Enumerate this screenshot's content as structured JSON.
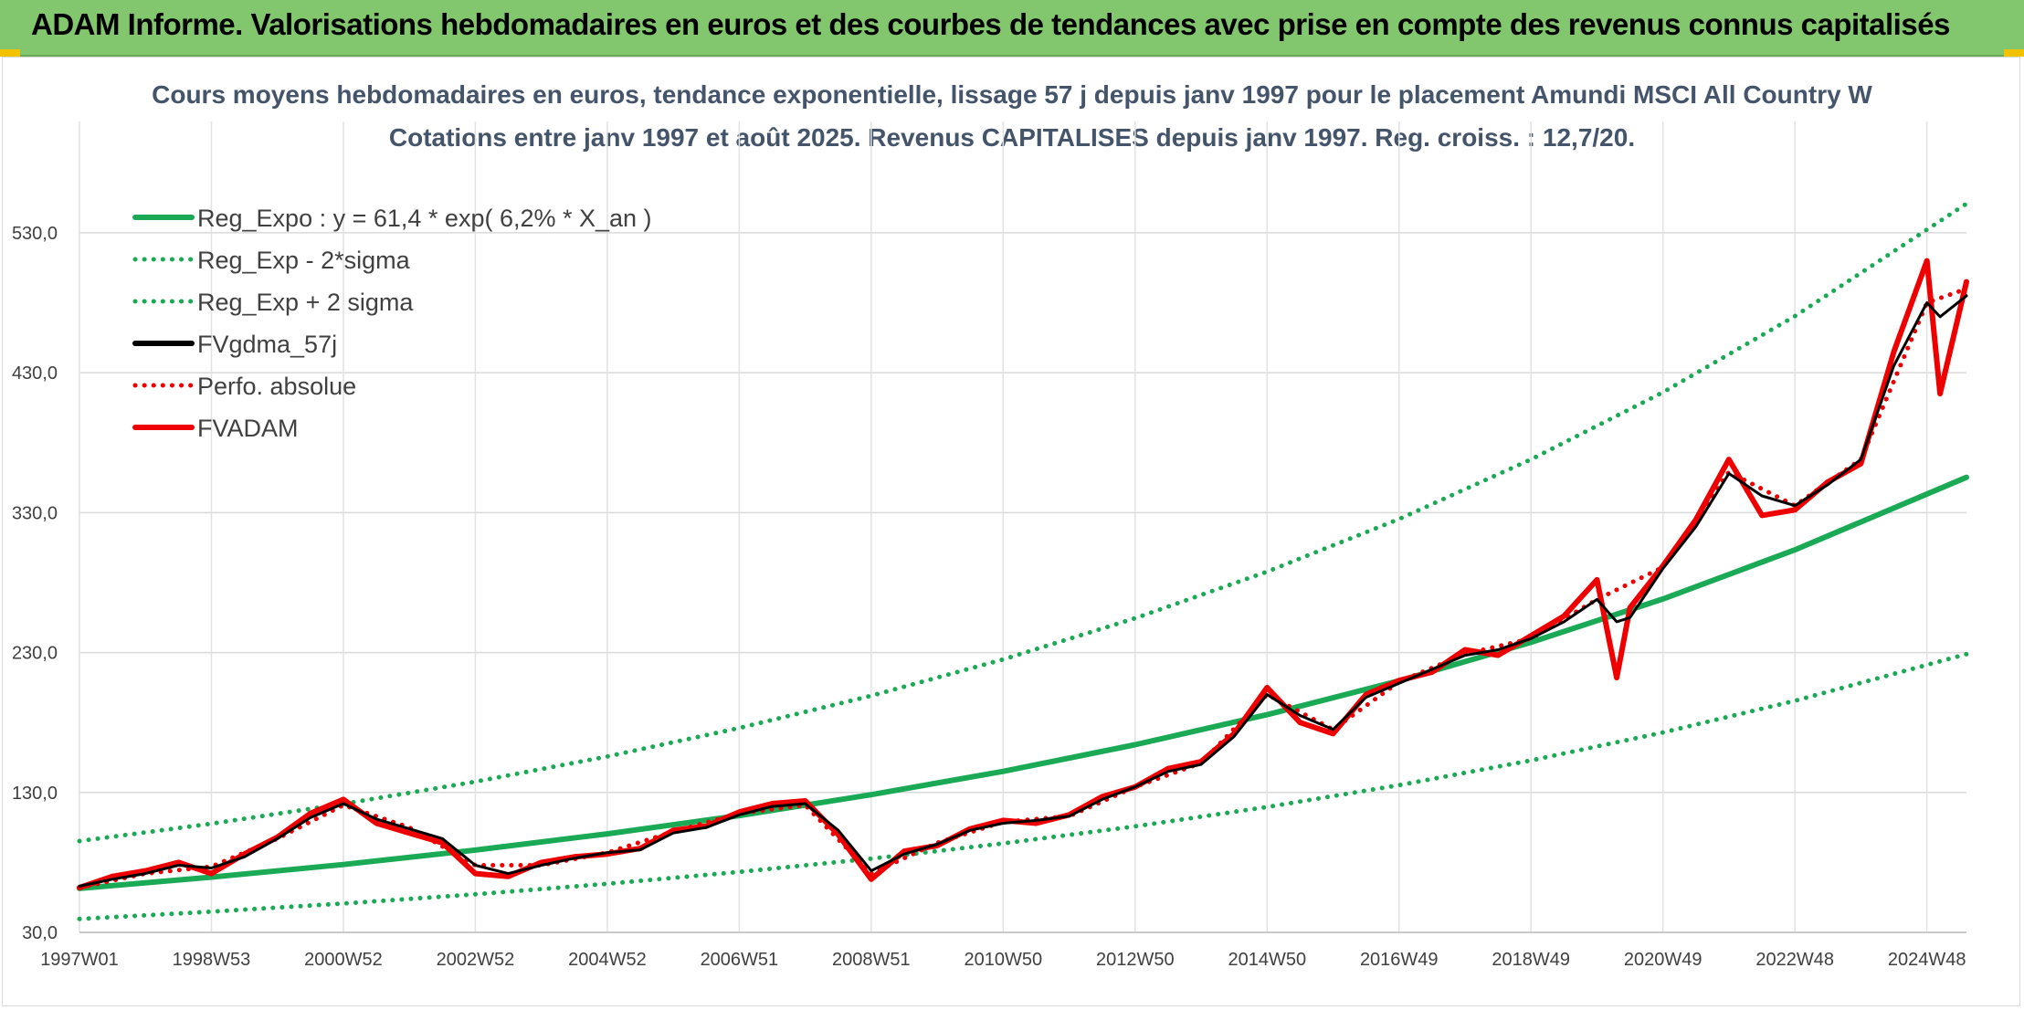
{
  "header": {
    "title": "ADAM Informe. Valorisations hebdomadaires en euros et des courbes de tendances avec prise en compte des revenus connus capitalisés"
  },
  "colors": {
    "banner": "#82c76e",
    "reg_expo": "#1aaa55",
    "fvgdma": "#000000",
    "fvadam": "#ee0000",
    "perfo": "#ee0000"
  },
  "chart_data": {
    "type": "line",
    "title": "Cours moyens hebdomadaires en euros, tendance exponentielle, lissage 57 j depuis janv 1997 pour le placement Amundi MSCI All Country W",
    "subtitle": "Cotations entre janv 1997 et août 2025. Revenus CAPITALISES depuis janv 1997. Reg. croiss. : 12,7/20.",
    "xlabel": "",
    "ylabel": "",
    "ylim": [
      30,
      590
    ],
    "xlim": [
      1997.0,
      2025.6
    ],
    "grid": true,
    "legend_position": "top-left",
    "y_ticks": [
      "30,0",
      "130,0",
      "230,0",
      "330,0",
      "430,0",
      "530,0"
    ],
    "y_tick_values": [
      30,
      130,
      230,
      330,
      430,
      530
    ],
    "x_ticks": [
      "1997W01",
      "1998W53",
      "2000W52",
      "2002W52",
      "2004W52",
      "2006W51",
      "2008W51",
      "2010W50",
      "2012W50",
      "2014W50",
      "2016W49",
      "2018W49",
      "2020W49",
      "2022W48",
      "2024W48"
    ],
    "x_tick_values": [
      1997.0,
      1999.0,
      2001.0,
      2003.0,
      2005.0,
      2007.0,
      2009.0,
      2011.0,
      2013.0,
      2015.0,
      2017.0,
      2019.0,
      2021.0,
      2023.0,
      2025.0
    ],
    "series": [
      {
        "name": "Reg_Expo : y = 61,4 * exp( 6,2% *  X_an )",
        "style": "solid-thick",
        "color": "#1aaa55",
        "x": [
          1997.0,
          1999.0,
          2001.0,
          2003.0,
          2005.0,
          2007.0,
          2009.0,
          2011.0,
          2013.0,
          2015.0,
          2017.0,
          2019.0,
          2021.0,
          2023.0,
          2025.6
        ],
        "values": [
          61.4,
          69.5,
          78.5,
          88.8,
          100.4,
          113.5,
          128.4,
          145.1,
          164.1,
          185.6,
          209.8,
          237.3,
          268.3,
          303.4,
          355.2
        ]
      },
      {
        "name": "Reg_Exp - 2*sigma",
        "style": "dotted",
        "color": "#1aaa55",
        "x": [
          1997.0,
          1999.0,
          2001.0,
          2003.0,
          2005.0,
          2007.0,
          2009.0,
          2011.0,
          2013.0,
          2015.0,
          2017.0,
          2019.0,
          2021.0,
          2023.0,
          2025.6
        ],
        "values": [
          39.6,
          44.8,
          50.6,
          57.2,
          64.7,
          73.2,
          82.7,
          93.6,
          105.8,
          119.6,
          135.2,
          152.9,
          172.9,
          195.5,
          228.9
        ]
      },
      {
        "name": "Reg_Exp + 2 sigma",
        "style": "dotted",
        "color": "#1aaa55",
        "x": [
          1997.0,
          1999.0,
          2001.0,
          2003.0,
          2005.0,
          2007.0,
          2009.0,
          2011.0,
          2013.0,
          2015.0,
          2017.0,
          2019.0,
          2021.0,
          2023.0,
          2025.6
        ],
        "values": [
          95.3,
          107.7,
          121.8,
          137.7,
          155.7,
          176.1,
          199.1,
          225.1,
          254.5,
          287.8,
          325.4,
          368.0,
          416.0,
          470.4,
          550.8
        ]
      },
      {
        "name": "FVgdma_57j",
        "style": "solid",
        "color": "#000000",
        "x": [
          1997.0,
          1997.5,
          1998.0,
          1998.5,
          1999.0,
          1999.5,
          2000.0,
          2000.5,
          2001.0,
          2001.5,
          2002.0,
          2002.5,
          2003.0,
          2003.5,
          2004.0,
          2004.5,
          2005.0,
          2005.5,
          2006.0,
          2006.5,
          2007.0,
          2007.5,
          2008.0,
          2008.5,
          2009.0,
          2009.5,
          2010.0,
          2010.5,
          2011.0,
          2011.5,
          2012.0,
          2012.5,
          2013.0,
          2013.5,
          2014.0,
          2014.5,
          2015.0,
          2015.5,
          2016.0,
          2016.5,
          2017.0,
          2017.5,
          2018.0,
          2018.5,
          2019.0,
          2019.5,
          2020.0,
          2020.3,
          2020.5,
          2021.0,
          2021.5,
          2022.0,
          2022.5,
          2023.0,
          2023.5,
          2024.0,
          2024.5,
          2025.0,
          2025.2,
          2025.6
        ],
        "values": [
          63,
          68,
          72,
          78,
          76,
          84,
          97,
          112,
          122,
          111,
          104,
          97,
          78,
          72,
          78,
          83,
          87,
          89,
          101,
          105,
          114,
          120,
          122,
          103,
          74,
          86,
          93,
          103,
          108,
          110,
          113,
          125,
          134,
          145,
          150,
          170,
          200,
          185,
          175,
          198,
          208,
          218,
          228,
          232,
          240,
          252,
          268,
          252,
          255,
          290,
          320,
          358,
          342,
          335,
          350,
          368,
          435,
          480,
          470,
          485
        ]
      },
      {
        "name": "Perfo. absolue",
        "style": "dotted",
        "color": "#ee0000",
        "x": [
          1997.0,
          1998.0,
          1999.0,
          2000.0,
          2001.0,
          2002.0,
          2003.0,
          2004.0,
          2005.0,
          2006.0,
          2007.0,
          2008.0,
          2009.0,
          2010.0,
          2011.0,
          2012.0,
          2013.0,
          2014.0,
          2015.0,
          2016.0,
          2017.0,
          2018.0,
          2019.0,
          2020.0,
          2021.0,
          2022.0,
          2023.0,
          2024.0,
          2025.0,
          2025.6
        ],
        "values": [
          62,
          72,
          77,
          97,
          121,
          105,
          78,
          78,
          87,
          102,
          115,
          121,
          72,
          94,
          109,
          113,
          134,
          151,
          200,
          175,
          209,
          229,
          240,
          268,
          291,
          359,
          335,
          368,
          480,
          490
        ]
      },
      {
        "name": "FVADAM",
        "style": "solid-thick",
        "color": "#ee0000",
        "x": [
          1997.0,
          1997.5,
          1998.0,
          1998.5,
          1999.0,
          1999.5,
          2000.0,
          2000.5,
          2001.0,
          2001.5,
          2002.0,
          2002.5,
          2003.0,
          2003.5,
          2004.0,
          2004.5,
          2005.0,
          2005.5,
          2006.0,
          2006.5,
          2007.0,
          2007.5,
          2008.0,
          2008.5,
          2009.0,
          2009.5,
          2010.0,
          2010.5,
          2011.0,
          2011.5,
          2012.0,
          2012.5,
          2013.0,
          2013.5,
          2014.0,
          2014.5,
          2015.0,
          2015.5,
          2016.0,
          2016.5,
          2017.0,
          2017.5,
          2018.0,
          2018.5,
          2019.0,
          2019.5,
          2020.0,
          2020.3,
          2020.5,
          2021.0,
          2021.5,
          2022.0,
          2022.5,
          2023.0,
          2023.5,
          2024.0,
          2024.5,
          2025.0,
          2025.2,
          2025.6
        ],
        "values": [
          62,
          70,
          74,
          80,
          72,
          86,
          98,
          115,
          125,
          108,
          101,
          94,
          72,
          70,
          80,
          84,
          86,
          90,
          103,
          106,
          116,
          122,
          124,
          100,
          68,
          88,
          92,
          104,
          110,
          108,
          114,
          127,
          134,
          147,
          152,
          172,
          205,
          180,
          172,
          200,
          210,
          216,
          232,
          228,
          242,
          256,
          282,
          212,
          262,
          292,
          325,
          368,
          328,
          332,
          352,
          365,
          445,
          510,
          415,
          495
        ]
      }
    ]
  }
}
